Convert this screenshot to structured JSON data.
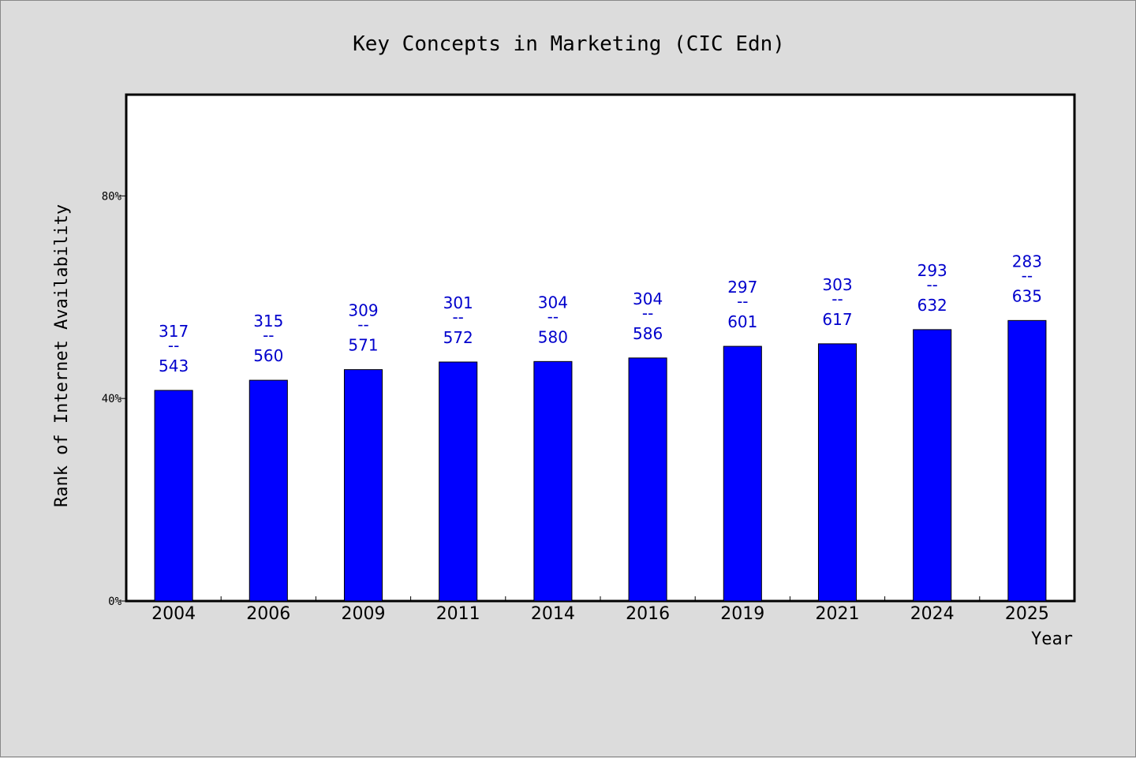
{
  "chart_data": {
    "type": "bar",
    "title": "Key Concepts in Marketing (CIC Edn)",
    "xlabel": "Year",
    "ylabel": "Rank of Internet Availability",
    "categories": [
      "2004",
      "2006",
      "2009",
      "2011",
      "2014",
      "2016",
      "2019",
      "2021",
      "2024",
      "2025"
    ],
    "values": [
      41.6,
      43.6,
      45.7,
      47.2,
      47.3,
      48.0,
      50.3,
      50.8,
      53.6,
      55.4
    ],
    "value_unit": "%",
    "bar_labels": [
      {
        "top": "317",
        "sep": "--",
        "bottom": "543"
      },
      {
        "top": "315",
        "sep": "--",
        "bottom": "560"
      },
      {
        "top": "309",
        "sep": "--",
        "bottom": "571"
      },
      {
        "top": "301",
        "sep": "--",
        "bottom": "572"
      },
      {
        "top": "304",
        "sep": "--",
        "bottom": "580"
      },
      {
        "top": "304",
        "sep": "--",
        "bottom": "586"
      },
      {
        "top": "297",
        "sep": "--",
        "bottom": "601"
      },
      {
        "top": "303",
        "sep": "--",
        "bottom": "617"
      },
      {
        "top": "293",
        "sep": "--",
        "bottom": "632"
      },
      {
        "top": "283",
        "sep": "--",
        "bottom": "635"
      }
    ],
    "yticks": [
      {
        "value": 0,
        "label": "0%"
      },
      {
        "value": 40,
        "label": "40%"
      },
      {
        "value": 80,
        "label": "80%"
      }
    ],
    "ylim": [
      0,
      100
    ],
    "grid": false,
    "legend": "none",
    "colors": {
      "bar": "#0000ff",
      "bar_edge": "#000000",
      "bar_label": "#0000cc",
      "plot_background": "#ffffff",
      "figure_background": "#dcdcdc"
    }
  }
}
